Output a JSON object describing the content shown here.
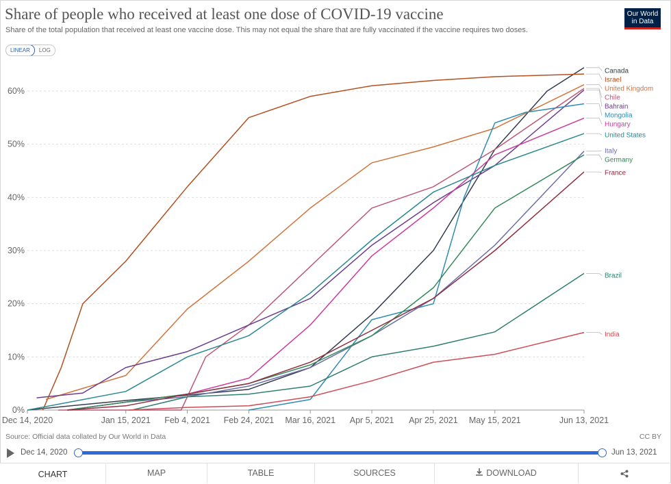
{
  "header": {
    "title": "Share of people who received at least one dose of COVID-19 vaccine",
    "subtitle": "Share of the total population that received at least one vaccine dose. This may not equal the share that are fully vaccinated if the vaccine requires two doses.",
    "logo_line1": "Our World",
    "logo_line2": "in Data"
  },
  "controls": {
    "linear_label": "LINEAR",
    "log_label": "LOG",
    "selected": "LINEAR"
  },
  "footer": {
    "source": "Source: Official data collated by Our World in Data",
    "license": "CC BY"
  },
  "timeline": {
    "start": "Dec 14, 2020",
    "end": "Jun 13, 2021"
  },
  "tabs": {
    "chart": "CHART",
    "map": "MAP",
    "table": "TABLE",
    "sources": "SOURCES",
    "download": "DOWNLOAD"
  },
  "chart_data": {
    "type": "line",
    "title": "Share of people who received at least one dose of COVID-19 vaccine",
    "ylabel": "",
    "xlabel": "",
    "ylim": [
      0,
      65
    ],
    "yticks": [
      0,
      10,
      20,
      30,
      40,
      50,
      60
    ],
    "ytick_labels": [
      "0%",
      "10%",
      "20%",
      "30%",
      "40%",
      "50%",
      "60%"
    ],
    "xlim": [
      "2020-12-14",
      "2021-06-13"
    ],
    "xticks": [
      "2020-12-14",
      "2021-01-15",
      "2021-02-04",
      "2021-02-24",
      "2021-03-16",
      "2021-04-05",
      "2021-04-25",
      "2021-05-15",
      "2021-06-13"
    ],
    "xtick_labels": [
      "Dec 14, 2020",
      "Jan 15, 2021",
      "Feb 4, 2021",
      "Feb 24, 2021",
      "Mar 16, 2021",
      "Apr 5, 2021",
      "Apr 25, 2021",
      "May 15, 2021",
      "Jun 13, 2021"
    ],
    "grid": "horizontal dashed",
    "legend": "labels at right end of lines",
    "series": [
      {
        "name": "Canada",
        "color": "#333c4d",
        "points": [
          [
            "2020-12-14",
            0
          ],
          [
            "2021-01-15",
            1.8
          ],
          [
            "2021-02-04",
            2.8
          ],
          [
            "2021-02-24",
            3.9
          ],
          [
            "2021-03-16",
            8
          ],
          [
            "2021-04-05",
            18
          ],
          [
            "2021-04-25",
            30
          ],
          [
            "2021-05-15",
            49
          ],
          [
            "2021-06-01",
            60
          ],
          [
            "2021-06-13",
            64.4
          ]
        ]
      },
      {
        "name": "Israel",
        "color": "#b44f1e",
        "points": [
          [
            "2020-12-19",
            0
          ],
          [
            "2020-12-25",
            8
          ],
          [
            "2021-01-01",
            20
          ],
          [
            "2021-01-15",
            28
          ],
          [
            "2021-02-04",
            42
          ],
          [
            "2021-02-24",
            55
          ],
          [
            "2021-03-16",
            59
          ],
          [
            "2021-04-05",
            61
          ],
          [
            "2021-04-25",
            62
          ],
          [
            "2021-05-15",
            62.7
          ],
          [
            "2021-06-13",
            63.2
          ]
        ]
      },
      {
        "name": "United Kingdom",
        "color": "#d0743c",
        "points": [
          [
            "2020-12-20",
            2
          ],
          [
            "2021-01-15",
            6.5
          ],
          [
            "2021-02-04",
            19
          ],
          [
            "2021-02-24",
            28
          ],
          [
            "2021-03-16",
            38
          ],
          [
            "2021-04-05",
            46.5
          ],
          [
            "2021-04-25",
            49.5
          ],
          [
            "2021-05-15",
            53
          ],
          [
            "2021-06-13",
            61.2
          ]
        ]
      },
      {
        "name": "Chile",
        "color": "#be5877",
        "points": [
          [
            "2020-12-24",
            0
          ],
          [
            "2021-02-02",
            0
          ],
          [
            "2021-02-10",
            10
          ],
          [
            "2021-02-24",
            16
          ],
          [
            "2021-03-16",
            27
          ],
          [
            "2021-04-05",
            38
          ],
          [
            "2021-04-25",
            42
          ],
          [
            "2021-05-15",
            49
          ],
          [
            "2021-06-13",
            60.5
          ]
        ]
      },
      {
        "name": "Bahrain",
        "color": "#6b3d8d",
        "points": [
          [
            "2020-12-17",
            2.3
          ],
          [
            "2021-01-01",
            3.2
          ],
          [
            "2021-01-15",
            8
          ],
          [
            "2021-02-04",
            11
          ],
          [
            "2021-02-24",
            16
          ],
          [
            "2021-03-16",
            21
          ],
          [
            "2021-04-05",
            31
          ],
          [
            "2021-04-25",
            39
          ],
          [
            "2021-05-15",
            46
          ],
          [
            "2021-06-13",
            60.2
          ]
        ]
      },
      {
        "name": "Mongolia",
        "color": "#2d8bb1",
        "points": [
          [
            "2021-02-24",
            0
          ],
          [
            "2021-03-16",
            2
          ],
          [
            "2021-04-05",
            17
          ],
          [
            "2021-04-25",
            20
          ],
          [
            "2021-05-05",
            40
          ],
          [
            "2021-05-15",
            54
          ],
          [
            "2021-05-25",
            56
          ],
          [
            "2021-06-13",
            57.6
          ]
        ]
      },
      {
        "name": "Hungary",
        "color": "#cc3a9a",
        "points": [
          [
            "2020-12-27",
            0
          ],
          [
            "2021-01-15",
            1.5
          ],
          [
            "2021-02-04",
            3
          ],
          [
            "2021-02-24",
            6
          ],
          [
            "2021-03-16",
            16
          ],
          [
            "2021-04-05",
            29
          ],
          [
            "2021-04-25",
            38
          ],
          [
            "2021-05-15",
            48
          ],
          [
            "2021-06-13",
            54.9
          ]
        ]
      },
      {
        "name": "United States",
        "color": "#29898f",
        "points": [
          [
            "2020-12-14",
            0
          ],
          [
            "2021-01-15",
            3.5
          ],
          [
            "2021-02-04",
            10
          ],
          [
            "2021-02-24",
            14
          ],
          [
            "2021-03-16",
            22
          ],
          [
            "2021-04-05",
            32
          ],
          [
            "2021-04-25",
            41
          ],
          [
            "2021-05-15",
            46
          ],
          [
            "2021-06-13",
            52
          ]
        ]
      },
      {
        "name": "Italy",
        "color": "#6d6fa8",
        "points": [
          [
            "2020-12-27",
            0
          ],
          [
            "2021-01-15",
            1.5
          ],
          [
            "2021-02-04",
            2.5
          ],
          [
            "2021-02-24",
            4.5
          ],
          [
            "2021-03-16",
            8
          ],
          [
            "2021-04-05",
            14
          ],
          [
            "2021-04-25",
            21
          ],
          [
            "2021-05-15",
            31
          ],
          [
            "2021-06-13",
            48.7
          ]
        ]
      },
      {
        "name": "Germany",
        "color": "#338a59",
        "points": [
          [
            "2020-12-27",
            0
          ],
          [
            "2021-01-15",
            1.5
          ],
          [
            "2021-02-04",
            3
          ],
          [
            "2021-02-24",
            5
          ],
          [
            "2021-03-16",
            8.5
          ],
          [
            "2021-04-05",
            14
          ],
          [
            "2021-04-25",
            23
          ],
          [
            "2021-05-15",
            38
          ],
          [
            "2021-06-13",
            48
          ]
        ]
      },
      {
        "name": "France",
        "color": "#8f2d3f",
        "points": [
          [
            "2020-12-27",
            0
          ],
          [
            "2021-01-15",
            0.8
          ],
          [
            "2021-02-04",
            3
          ],
          [
            "2021-02-24",
            5
          ],
          [
            "2021-03-16",
            9
          ],
          [
            "2021-04-05",
            15
          ],
          [
            "2021-04-25",
            21
          ],
          [
            "2021-05-15",
            30
          ],
          [
            "2021-06-13",
            44.8
          ]
        ]
      },
      {
        "name": "Brazil",
        "color": "#2f7f6e",
        "points": [
          [
            "2021-01-17",
            0
          ],
          [
            "2021-02-04",
            2.5
          ],
          [
            "2021-02-24",
            3
          ],
          [
            "2021-03-16",
            4.5
          ],
          [
            "2021-04-05",
            10
          ],
          [
            "2021-04-25",
            12
          ],
          [
            "2021-05-15",
            14.7
          ],
          [
            "2021-06-13",
            25.7
          ]
        ]
      },
      {
        "name": "India",
        "color": "#cf4b56",
        "points": [
          [
            "2021-01-16",
            0
          ],
          [
            "2021-02-04",
            0.5
          ],
          [
            "2021-02-24",
            0.8
          ],
          [
            "2021-03-16",
            2.5
          ],
          [
            "2021-04-05",
            5.5
          ],
          [
            "2021-04-25",
            9
          ],
          [
            "2021-05-15",
            10.5
          ],
          [
            "2021-06-13",
            14.6
          ]
        ]
      }
    ]
  }
}
